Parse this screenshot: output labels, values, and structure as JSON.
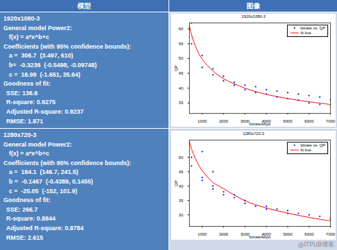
{
  "table": {
    "header": [
      "模型",
      "图像"
    ],
    "rows": [
      {
        "name": "1920x1080-3",
        "model": "General model Power2:",
        "formula": "f(x) = a*x^b+c",
        "coefficients_title": "Coefficients (with 95% confidence bounds):",
        "coefficients": [
          "a =  306.7  (3.497, 610)",
          "b=  -0.3236  (-0.5498, -0.09748)",
          "c =  16.99  (-1.651, 35.64)"
        ],
        "fit_title": "Goodness of fit:",
        "fit": [
          "SSE: 136.6",
          "R-square: 0.9275",
          "Adjusted R-square: 0.9237",
          "RMSE: 1.871"
        ]
      },
      {
        "name": "1280x720-3",
        "model": "General model Power2:",
        "formula": "f(x) = a*x^b+c",
        "coefficients_title": "Coefficients (with 95% confidence bounds):",
        "coefficients": [
          "a =  194.1  (146.7, 241.5)",
          "b =  -0.1467  (-0.4389, 0.1455)",
          "c =  -25.05  (-152, 101.9)"
        ],
        "fit_title": "Goodness of fit:",
        "fit": [
          "SSE: 266.7",
          "R-square: 0.8844",
          "Adjusted R-square: 0.8784",
          "RMSE: 2.615"
        ]
      }
    ]
  },
  "chart_data": [
    {
      "type": "scatter",
      "title": "1920x1080-3",
      "x_label": "bitrate/kbps",
      "y_label": "QP",
      "xlim": [
        400,
        7000
      ],
      "xticks": [
        1000,
        2000,
        3000,
        4000,
        5000,
        6000,
        7000
      ],
      "ylim": [
        31.5,
        62
      ],
      "yticks": [
        35,
        40,
        45,
        50,
        55,
        60
      ],
      "grid": false,
      "legend": "northeast",
      "series": [
        {
          "name": "bitrate vs. QP",
          "type": "scatter",
          "color": "#0000ff",
          "marker": "dot",
          "x": [
            500,
            500,
            1000,
            1000,
            1500,
            1500,
            2000,
            2000,
            2500,
            2500,
            3000,
            3000,
            3500,
            3500,
            4000,
            4000,
            4500,
            4500,
            5000,
            5000,
            5500,
            5500,
            6000,
            6000,
            6500,
            6500,
            7000,
            7000
          ],
          "values": [
            62,
            55,
            51,
            47,
            46.5,
            44.5,
            44,
            42.5,
            42,
            41,
            41,
            39.5,
            40.5,
            38.5,
            39.5,
            38,
            39,
            37,
            38.5,
            36.5,
            38,
            36,
            37.5,
            35,
            37,
            34.5,
            36,
            34
          ]
        },
        {
          "name": "fit line",
          "type": "line",
          "color": "#ff0000",
          "line_style": "solid",
          "x": [
            400,
            500,
            750,
            1000,
            1500,
            2000,
            3000,
            4000,
            5000,
            6000,
            7000
          ],
          "values": [
            61.1,
            58.0,
            53.0,
            49.8,
            45.8,
            43.2,
            40.0,
            37.9,
            36.5,
            35.4,
            34.5
          ]
        }
      ]
    },
    {
      "type": "scatter",
      "title": "1280x720-3",
      "x_label": "bitrate/kbps",
      "y_label": "QP",
      "xlim": [
        400,
        7000
      ],
      "xticks": [
        1000,
        2000,
        3000,
        4000,
        5000,
        6000,
        7000
      ],
      "ylim": [
        26,
        56
      ],
      "yticks": [
        30,
        35,
        40,
        45,
        50
      ],
      "grid": false,
      "legend": "northeast",
      "series": [
        {
          "name": "bitrate vs. QP",
          "type": "scatter",
          "color": "#0000ff",
          "marker": "dot",
          "x": [
            500,
            500,
            1000,
            1000,
            1000,
            1500,
            1500,
            1500,
            2000,
            2000,
            2500,
            2500,
            3000,
            3000,
            3500,
            4000,
            4000,
            4500,
            5000,
            5000,
            5500,
            6000,
            6500,
            7000,
            7000
          ],
          "values": [
            50,
            47,
            52,
            43,
            42,
            45,
            40,
            39,
            38,
            37,
            37,
            36,
            35,
            34,
            33,
            33,
            32,
            32,
            31.5,
            30.5,
            30.5,
            30,
            29.5,
            29,
            28.5
          ]
        },
        {
          "name": "fit line",
          "type": "line",
          "color": "#ff0000",
          "line_style": "solid",
          "x": [
            400,
            500,
            750,
            1000,
            1500,
            2000,
            3000,
            4000,
            5000,
            6000,
            7000
          ],
          "values": [
            55.5,
            52.9,
            48.5,
            45.4,
            41.3,
            39.1,
            34.9,
            32.4,
            30.6,
            29.1,
            27.9
          ]
        }
      ]
    }
  ],
  "watermark": "@ITPUB博客"
}
